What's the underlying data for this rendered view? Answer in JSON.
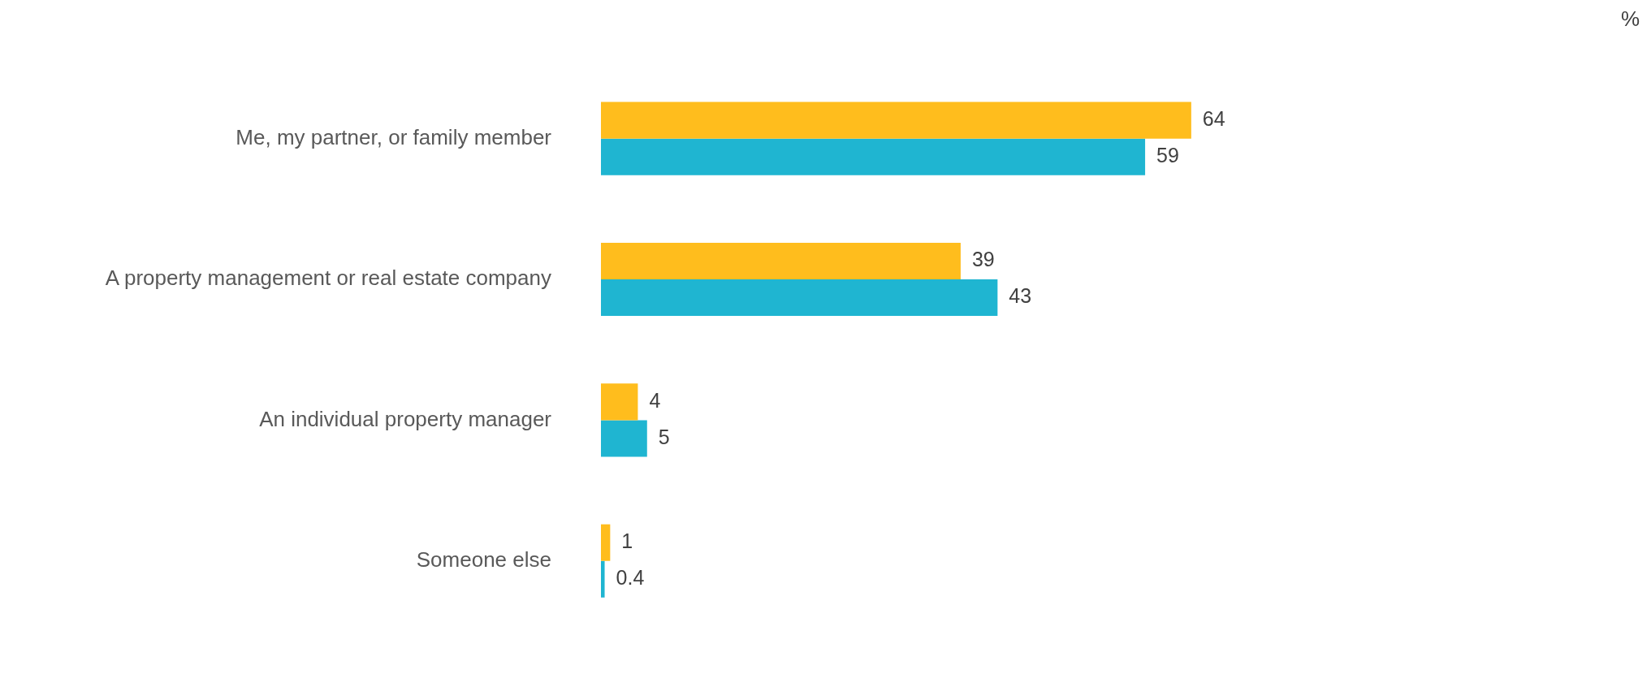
{
  "chart_data": {
    "type": "bar",
    "orientation": "horizontal",
    "categories": [
      "Me, my partner, or family member",
      "A property management or real estate company",
      "An individual property manager",
      "Someone else"
    ],
    "series": [
      {
        "color": "#ffbd1d",
        "values": [
          64,
          39,
          4,
          1
        ]
      },
      {
        "color": "#1fb5d1",
        "values": [
          59,
          43,
          5,
          0.4
        ]
      }
    ],
    "data_labels": true,
    "legend": false,
    "tick_labels": "y",
    "annotations": [
      "%"
    ]
  }
}
